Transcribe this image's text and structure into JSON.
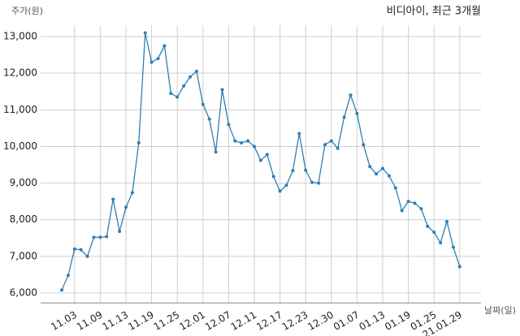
{
  "chart_data": {
    "type": "line",
    "title": "비디아이, 최근 3개월",
    "y_label": "주가(원)",
    "x_label": "날짜(일)",
    "categories": [
      null,
      null,
      "11.03",
      null,
      null,
      null,
      "11.09",
      null,
      null,
      null,
      "11.13",
      null,
      null,
      null,
      "11.19",
      null,
      null,
      null,
      "11.25",
      null,
      null,
      null,
      "12.01",
      null,
      null,
      null,
      "12.07",
      null,
      null,
      null,
      "12.11",
      null,
      null,
      null,
      "12.17",
      null,
      null,
      null,
      "12.23",
      null,
      null,
      null,
      "12.30",
      null,
      null,
      null,
      "01.07",
      null,
      null,
      null,
      "01.13",
      null,
      null,
      null,
      "01.19",
      null,
      null,
      null,
      "01.25",
      null,
      null,
      null,
      "21.01.29"
    ],
    "series": [
      {
        "name": "비디아이",
        "color": "#2f7fb3",
        "values": [
          6080,
          6480,
          7200,
          7180,
          7000,
          7520,
          7520,
          7540,
          8560,
          7680,
          8340,
          8740,
          10100,
          13100,
          12300,
          12400,
          12750,
          11450,
          11350,
          11650,
          11900,
          12050,
          11150,
          10750,
          9850,
          11550,
          10600,
          10150,
          10100,
          10150,
          10000,
          9620,
          9780,
          9180,
          8780,
          8940,
          9340,
          10350,
          9350,
          9020,
          9000,
          10050,
          10150,
          9950,
          10800,
          11400,
          10900,
          10050,
          9450,
          9250,
          9400,
          9200,
          8870,
          8250,
          8500,
          8450,
          8300,
          7820,
          7660,
          7370,
          7950,
          7250,
          6720
        ]
      }
    ],
    "ylim": [
      5730,
      13300
    ],
    "yticks": [
      {
        "value": 6000,
        "label": "6,000"
      },
      {
        "value": 7000,
        "label": "7,000"
      },
      {
        "value": 8000,
        "label": "8,000"
      },
      {
        "value": 9000,
        "label": "9,000"
      },
      {
        "value": 10000,
        "label": "10,000"
      },
      {
        "value": 11000,
        "label": "11,000"
      },
      {
        "value": 12000,
        "label": "12,000"
      },
      {
        "value": 13000,
        "label": "13,000"
      }
    ],
    "grid": true
  }
}
